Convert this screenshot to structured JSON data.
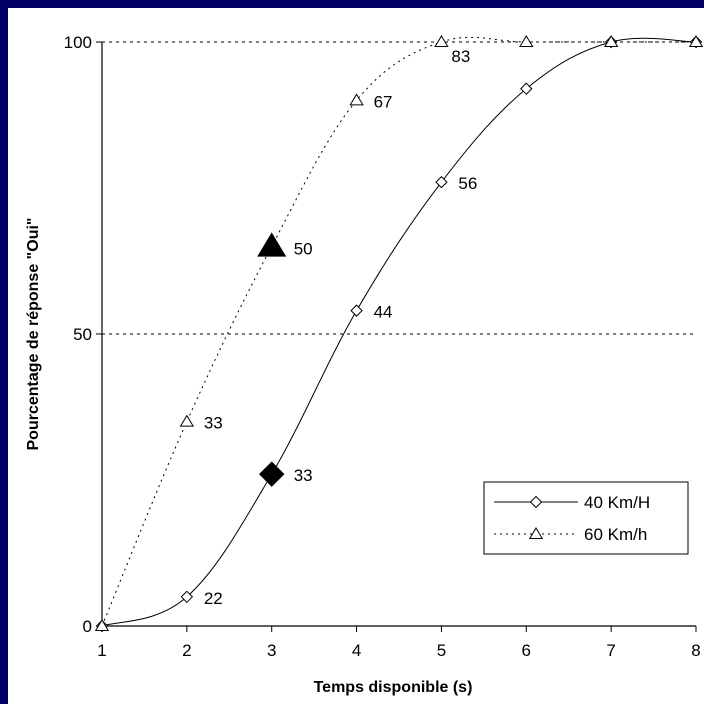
{
  "chart_data": {
    "type": "line",
    "title": "",
    "xlabel": "Temps disponible (s)",
    "ylabel": "Pourcentage de réponse \"Oui\"",
    "xlim": [
      1,
      8
    ],
    "ylim": [
      0,
      100
    ],
    "x_ticks": [
      "1",
      "2",
      "3",
      "4",
      "5",
      "6",
      "7",
      "8"
    ],
    "y_ticks": [
      "0",
      "50",
      "100"
    ],
    "grid": "horizontal dashed at 50 and 100",
    "legend_position": "right-lower inside plot",
    "series": [
      {
        "name": "40 Km/H",
        "marker": "diamond",
        "line_style": "solid",
        "x": [
          1,
          2,
          3,
          4,
          5,
          6,
          7,
          8
        ],
        "y": [
          0,
          5,
          26,
          54,
          76,
          92,
          100,
          100
        ],
        "highlight_x": 3,
        "labels": [
          {
            "x": 2,
            "text": "22"
          },
          {
            "x": 3,
            "text": "33"
          },
          {
            "x": 4,
            "text": "44"
          },
          {
            "x": 5,
            "text": "56"
          }
        ]
      },
      {
        "name": "60 Km/h",
        "marker": "triangle",
        "line_style": "dotted",
        "x": [
          1,
          2,
          3,
          4,
          5,
          6,
          7,
          8
        ],
        "y": [
          0,
          35,
          65,
          90,
          100,
          100,
          100,
          100
        ],
        "highlight_x": 3,
        "labels": [
          {
            "x": 2,
            "text": "33"
          },
          {
            "x": 3,
            "text": "50"
          },
          {
            "x": 4,
            "text": "67"
          },
          {
            "x": 5,
            "text": "83"
          }
        ]
      }
    ]
  }
}
